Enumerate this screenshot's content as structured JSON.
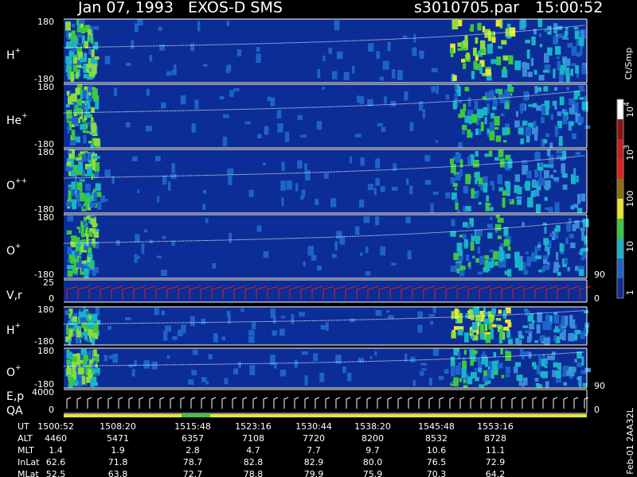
{
  "header": {
    "title": "Jan 07, 1993   EXOS-D SMS",
    "file": "s3010705.par",
    "time": "15:00:52"
  },
  "panels": [
    {
      "label": "H",
      "sup": "+",
      "ticks": [
        "180",
        "-180"
      ]
    },
    {
      "label": "He",
      "sup": "+",
      "ticks": [
        "180",
        "-180"
      ]
    },
    {
      "label": "O",
      "sup": "++",
      "ticks": [
        "180",
        "-180"
      ]
    },
    {
      "label": "O",
      "sup": "+",
      "ticks": [
        "180",
        "-180"
      ]
    },
    {
      "label": "V,r",
      "ticks": [
        "25",
        "0"
      ],
      "right_ticks": [
        "90",
        "0"
      ]
    },
    {
      "label": "H",
      "sup": "+",
      "ticks": [
        "180",
        "-180"
      ]
    },
    {
      "label": "O",
      "sup": "+",
      "ticks": [
        "180",
        "-180"
      ]
    },
    {
      "label": "E,p",
      "label2": "QA",
      "ticks": [
        "4000",
        "0"
      ],
      "right_ticks": [
        "90",
        "0"
      ]
    }
  ],
  "colorbar": {
    "title": "Ct/Smp",
    "ticks": [
      {
        "base": "10",
        "sup": "4"
      },
      {
        "base": "10",
        "sup": "3"
      },
      {
        "base": "100"
      },
      {
        "base": "10"
      },
      {
        "base": "1"
      }
    ]
  },
  "footer": {
    "rows": [
      {
        "label": "UT",
        "values": [
          "1500:52",
          "1508:20",
          "1515:48",
          "1523:16",
          "1530:44",
          "1538:20",
          "1545:48",
          "1553:16"
        ]
      },
      {
        "label": "ALT",
        "values": [
          "4460",
          "5471",
          "6357",
          "7108",
          "7720",
          "8200",
          "8532",
          "8728"
        ]
      },
      {
        "label": "MLT",
        "values": [
          "1.4",
          "1.9",
          "2.8",
          "4.7",
          "7.7",
          "9.7",
          "10.6",
          "11.1"
        ]
      },
      {
        "label": "InLat",
        "values": [
          "62.6",
          "71.8",
          "78.7",
          "82.8",
          "82.9",
          "80.0",
          "76.5",
          "72.9"
        ]
      },
      {
        "label": "MLat",
        "values": [
          "52.5",
          "63.8",
          "72.7",
          "78.8",
          "79.9",
          "75.9",
          "70.3",
          "64.2"
        ]
      }
    ],
    "id": "Feb-01 2AA32L"
  }
}
